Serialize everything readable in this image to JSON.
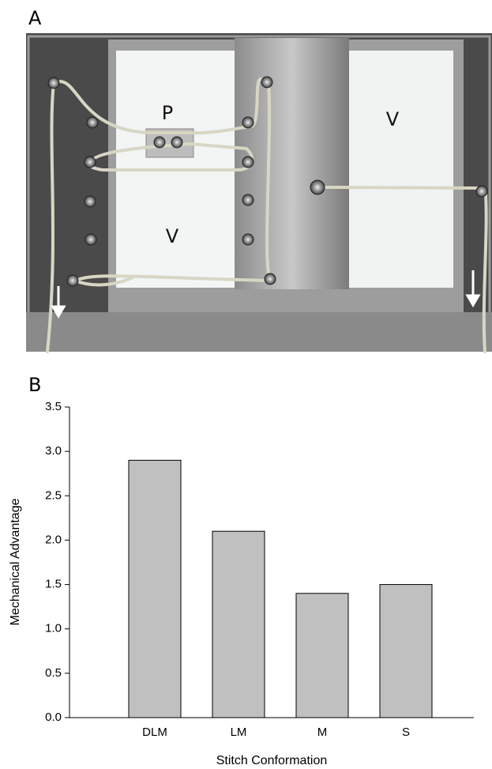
{
  "panel_labels": [
    "A",
    "B"
  ],
  "photo": {
    "labels": [
      "P",
      "V",
      "V"
    ]
  },
  "chart_data": {
    "type": "bar",
    "x_label": "Stitch Conformation",
    "y_label": "Mechanical Advantage",
    "categories": [
      "DLM",
      "LM",
      "M",
      "S"
    ],
    "values": [
      2.9,
      2.1,
      1.4,
      1.5
    ],
    "color": "#c0c0c0",
    "ylim": [
      0,
      3.5
    ],
    "yticks": [
      {
        "value": 0,
        "label": "0.0"
      },
      0.5,
      {
        "value": 1,
        "label": "1.0"
      },
      1.5,
      {
        "value": 2,
        "label": "2.0"
      },
      2.5,
      {
        "value": 3,
        "label": "3.0"
      },
      3.5
    ]
  }
}
